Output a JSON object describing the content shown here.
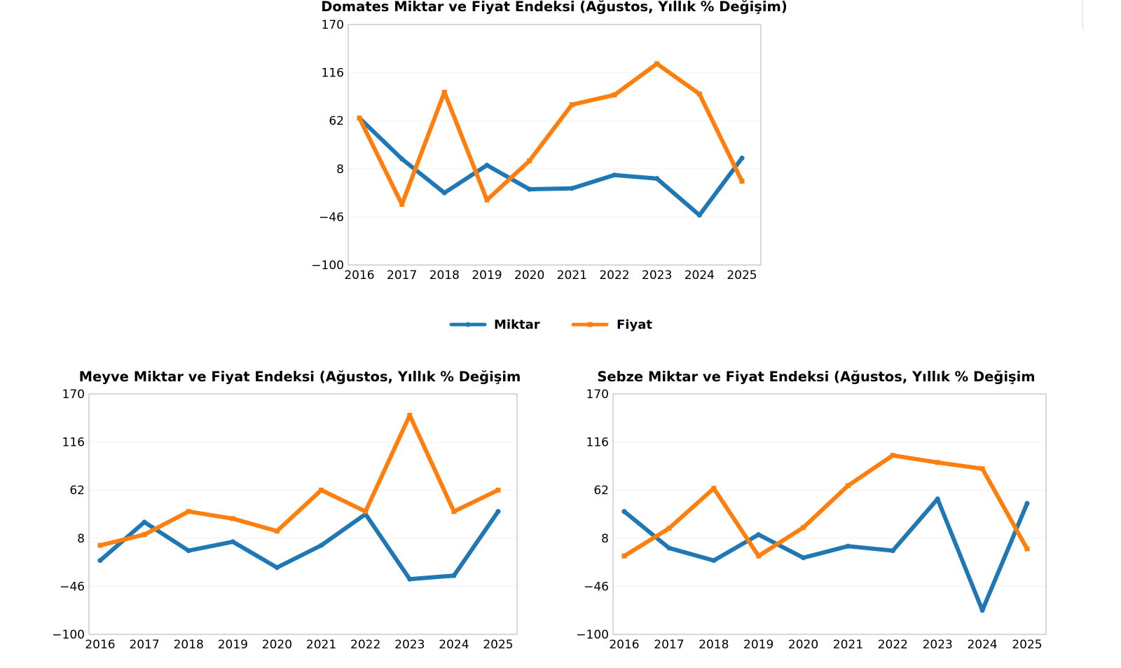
{
  "legend": {
    "items": [
      {
        "label": "Miktar",
        "color": "#1f77b4",
        "marker": "circle"
      },
      {
        "label": "Fiyat",
        "color": "#ff7f0e",
        "marker": "square"
      }
    ]
  },
  "chart_data": [
    {
      "type": "line",
      "title": "Domates Miktar ve Fiyat Endeksi (Ağustos, Yıllık % Değişim)",
      "xlabel": "",
      "ylabel": "",
      "categories": [
        "2016",
        "2017",
        "2018",
        "2019",
        "2020",
        "2021",
        "2022",
        "2023",
        "2024",
        "2025"
      ],
      "yticks": [
        "170",
        "116",
        "62",
        "8",
        "−46",
        "−100"
      ],
      "ylim": [
        -100,
        170
      ],
      "grid": "horizontal",
      "series": [
        {
          "name": "Miktar",
          "color": "#1f77b4",
          "values": [
            65,
            19,
            -19,
            12,
            -15,
            -14,
            1,
            -3,
            -44,
            20
          ]
        },
        {
          "name": "Fiyat",
          "color": "#ff7f0e",
          "values": [
            65,
            -32,
            94,
            -27,
            17,
            80,
            91,
            126,
            92,
            -6
          ]
        }
      ]
    },
    {
      "type": "line",
      "title": "Meyve Miktar ve Fiyat Endeksi (Ağustos, Yıllık % Değişim",
      "xlabel": "",
      "ylabel": "",
      "categories": [
        "2016",
        "2017",
        "2018",
        "2019",
        "2020",
        "2021",
        "2022",
        "2023",
        "2024",
        "2025"
      ],
      "yticks": [
        "170",
        "116",
        "62",
        "8",
        "−46",
        "−100"
      ],
      "ylim": [
        -100,
        170
      ],
      "grid": "horizontal",
      "series": [
        {
          "name": "Miktar",
          "color": "#1f77b4",
          "values": [
            -17,
            26,
            -6,
            4,
            -25,
            0,
            35,
            -38,
            -34,
            38
          ]
        },
        {
          "name": "Fiyat",
          "color": "#ff7f0e",
          "values": [
            0,
            12,
            38,
            30,
            16,
            62,
            38,
            146,
            38,
            62
          ]
        }
      ]
    },
    {
      "type": "line",
      "title": "Sebze Miktar ve Fiyat Endeksi (Ağustos, Yıllık % Değişim",
      "xlabel": "",
      "ylabel": "",
      "categories": [
        "2016",
        "2017",
        "2018",
        "2019",
        "2020",
        "2021",
        "2022",
        "2023",
        "2024",
        "2025"
      ],
      "yticks": [
        "170",
        "116",
        "62",
        "8",
        "−46",
        "−100"
      ],
      "ylim": [
        -100,
        170
      ],
      "grid": "horizontal",
      "series": [
        {
          "name": "Miktar",
          "color": "#1f77b4",
          "values": [
            38,
            -3,
            -17,
            12,
            -14,
            -1,
            -6,
            52,
            -73,
            47
          ]
        },
        {
          "name": "Fiyat",
          "color": "#ff7f0e",
          "values": [
            -12,
            19,
            64,
            -12,
            20,
            67,
            101,
            93,
            86,
            -4
          ]
        }
      ]
    }
  ]
}
